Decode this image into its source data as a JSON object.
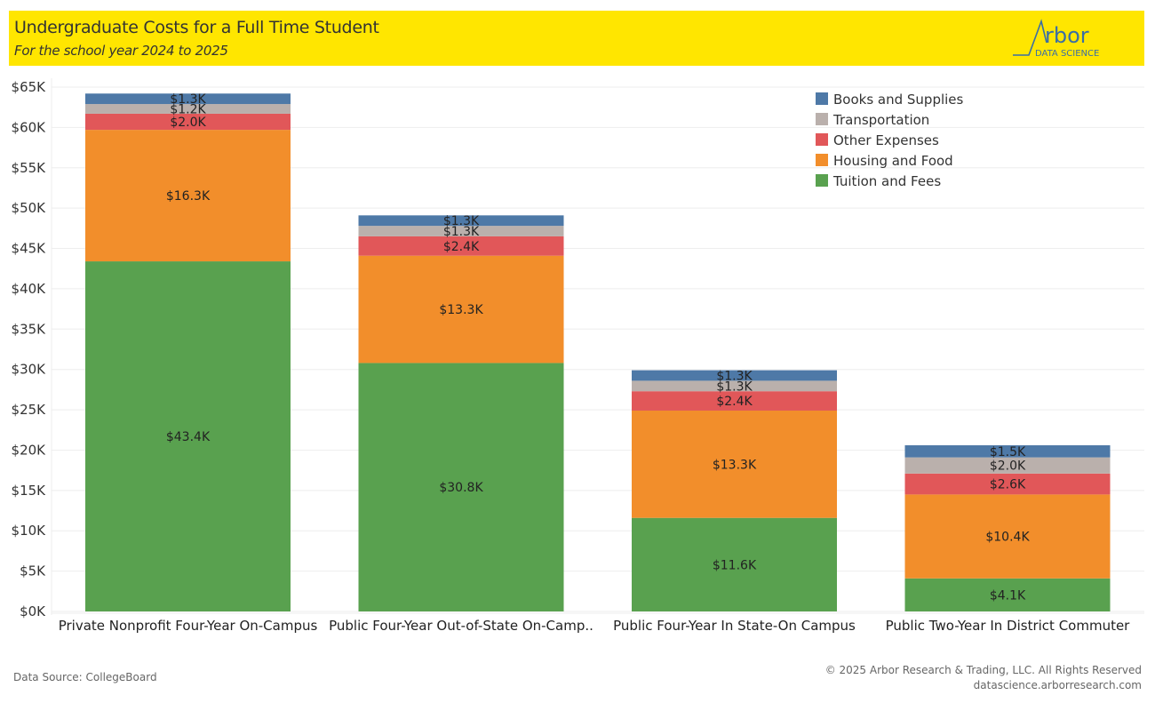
{
  "header": {
    "title": "Undergraduate Costs for a Full Time Student",
    "subtitle": "For the school year 2024 to 2025",
    "logo_text": "rbor",
    "logo_subtext": "DATA SCIENCE",
    "background": "#ffe600"
  },
  "footer": {
    "source": "Data Source: CollegeBoard",
    "copyright": "© 2025 Arbor Research & Trading, LLC. All Rights Reserved",
    "website": "datascience.arborresearch.com"
  },
  "chart_data": {
    "type": "bar",
    "stacked": true,
    "title": "Undergraduate Costs for a Full Time Student",
    "subtitle": "For the school year 2024 to 2025",
    "xlabel": "",
    "ylabel": "",
    "ylim": [
      0,
      65
    ],
    "y_unit": "thousand USD",
    "y_ticks": [
      0,
      5,
      10,
      15,
      20,
      25,
      30,
      35,
      40,
      45,
      50,
      55,
      60,
      65
    ],
    "y_tick_labels": [
      "$0K",
      "$5K",
      "$10K",
      "$15K",
      "$20K",
      "$25K",
      "$30K",
      "$35K",
      "$40K",
      "$45K",
      "$50K",
      "$55K",
      "$60K",
      "$65K"
    ],
    "grid": true,
    "legend_position": "top-right",
    "categories": [
      "Private Nonprofit Four-Year On-Campus",
      "Public Four-Year Out-of-State On-Camp..",
      "Public Four-Year In State-On Campus",
      "Public Two-Year In District Commuter"
    ],
    "series": [
      {
        "name": "Tuition and Fees",
        "color": "#59a14f",
        "values": [
          43.4,
          30.8,
          11.6,
          4.1
        ],
        "labels": [
          "$43.4K",
          "$30.8K",
          "$11.6K",
          "$4.1K"
        ]
      },
      {
        "name": "Housing and Food",
        "color": "#f28e2b",
        "values": [
          16.3,
          13.3,
          13.3,
          10.4
        ],
        "labels": [
          "$16.3K",
          "$13.3K",
          "$13.3K",
          "$10.4K"
        ]
      },
      {
        "name": "Other Expenses",
        "color": "#e15759",
        "values": [
          2.0,
          2.4,
          2.4,
          2.6
        ],
        "labels": [
          "$2.0K",
          "$2.4K",
          "$2.4K",
          "$2.6K"
        ]
      },
      {
        "name": "Transportation",
        "color": "#bab0ac",
        "values": [
          1.2,
          1.3,
          1.3,
          2.0
        ],
        "labels": [
          "$1.2K",
          "$1.3K",
          "$1.3K",
          "$2.0K"
        ]
      },
      {
        "name": "Books and Supplies",
        "color": "#4e79a7",
        "values": [
          1.3,
          1.3,
          1.3,
          1.5
        ],
        "labels": [
          "$1.3K",
          "$1.3K",
          "$1.3K",
          "$1.5K"
        ]
      }
    ],
    "legend_order": [
      "Books and Supplies",
      "Transportation",
      "Other Expenses",
      "Housing and Food",
      "Tuition and Fees"
    ]
  }
}
